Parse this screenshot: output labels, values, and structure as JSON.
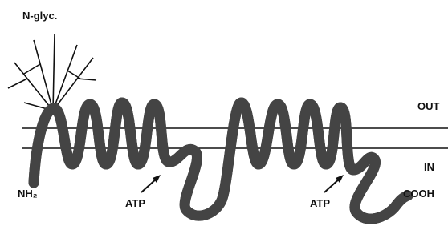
{
  "labels": {
    "glycosylation": "N-glyc.",
    "outside": "OUT",
    "inside": "IN",
    "n_terminus": "NH₂",
    "c_terminus": "COOH",
    "atp_sites": [
      "ATP",
      "ATP"
    ]
  }
}
